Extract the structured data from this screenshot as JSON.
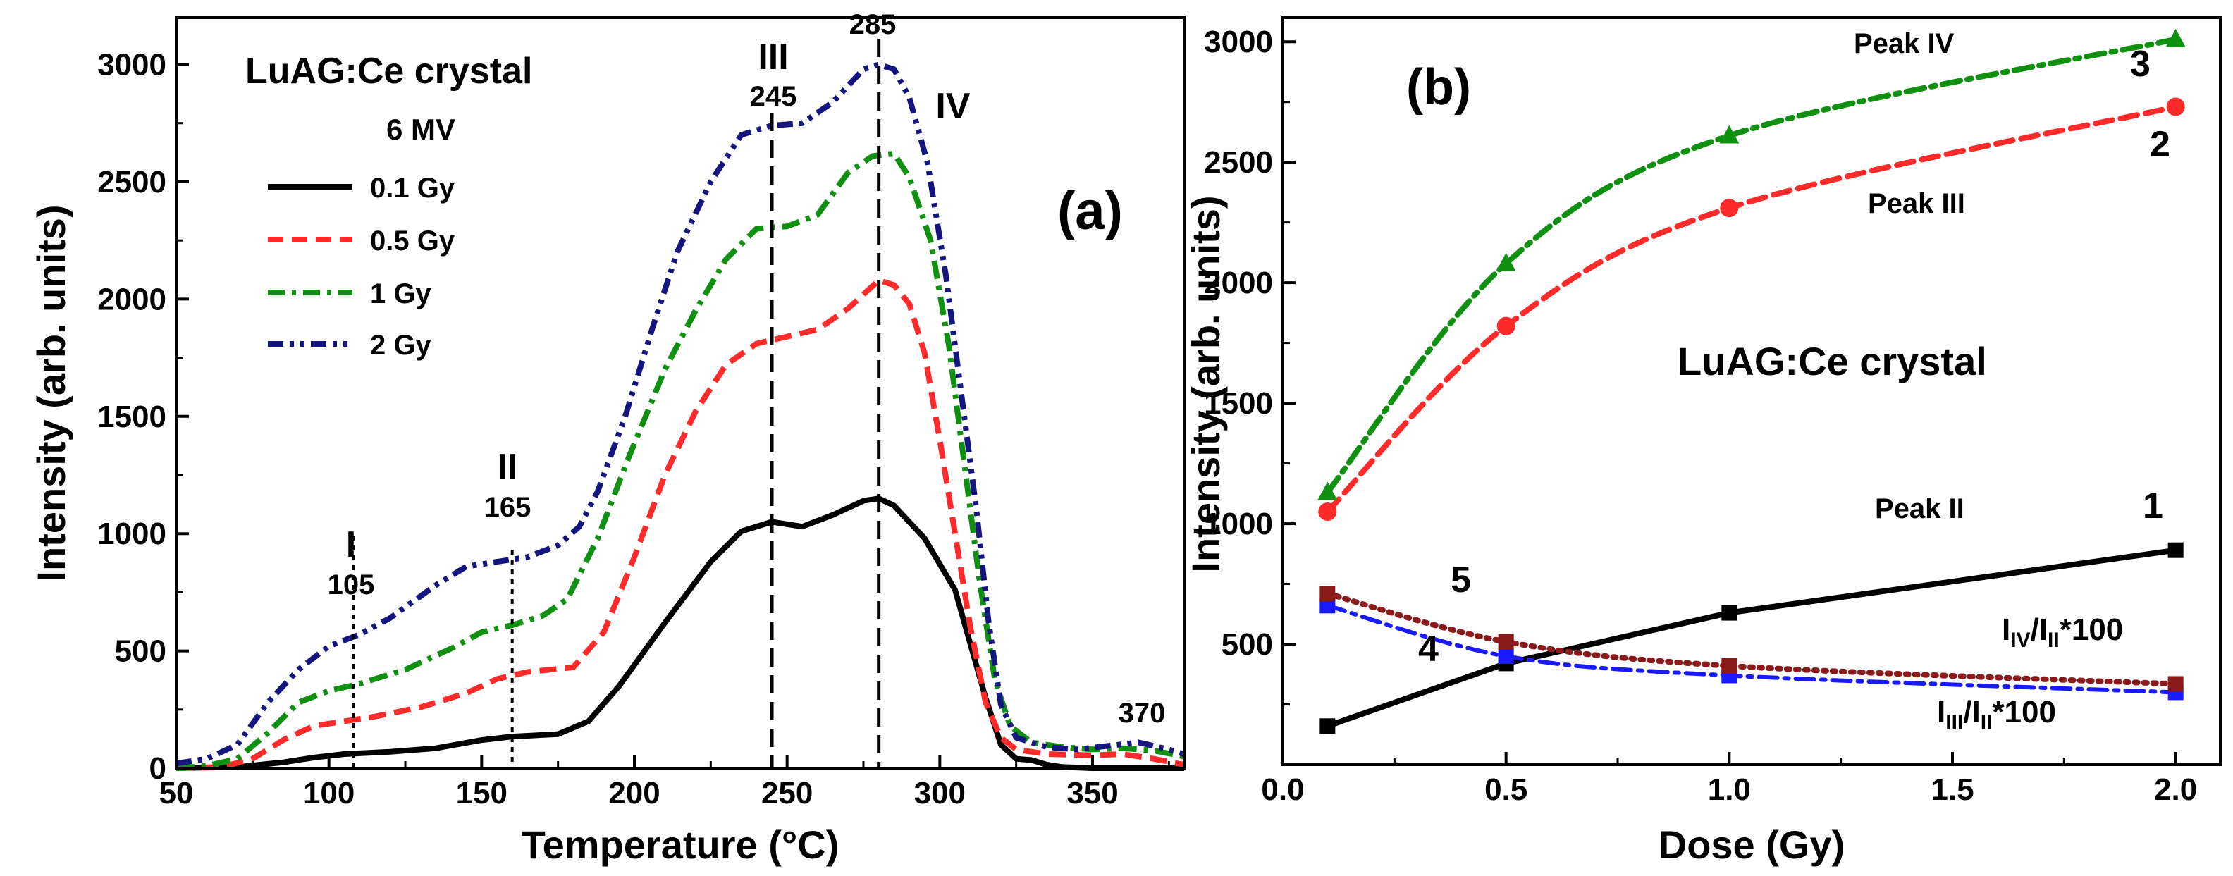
{
  "chart_data": [
    {
      "panel": "a",
      "type": "line",
      "panel_label": "(a)",
      "title": "LuAG:Ce crystal",
      "subtitle": "6 MV",
      "xlabel": "Temperature (°C)",
      "ylabel": "Intensity (arb. units)",
      "xlim": [
        50,
        380
      ],
      "ylim": [
        0,
        3200
      ],
      "xticks": [
        "50",
        "100",
        "150",
        "200",
        "250",
        "300",
        "350"
      ],
      "yticks": [
        "0",
        "500",
        "1000",
        "1500",
        "2000",
        "2500",
        "3000"
      ],
      "legend_position": "top-left",
      "series": [
        {
          "name": "0.1 Gy",
          "color": "#000000",
          "style": "solid",
          "points": [
            [
              50,
              0
            ],
            [
              70,
              5
            ],
            [
              85,
              25
            ],
            [
              95,
              45
            ],
            [
              105,
              60
            ],
            [
              120,
              70
            ],
            [
              135,
              85
            ],
            [
              150,
              120
            ],
            [
              160,
              135
            ],
            [
              175,
              145
            ],
            [
              185,
              200
            ],
            [
              195,
              350
            ],
            [
              210,
              620
            ],
            [
              225,
              880
            ],
            [
              235,
              1010
            ],
            [
              245,
              1050
            ],
            [
              255,
              1030
            ],
            [
              265,
              1080
            ],
            [
              275,
              1140
            ],
            [
              280,
              1150
            ],
            [
              285,
              1120
            ],
            [
              295,
              980
            ],
            [
              305,
              760
            ],
            [
              315,
              300
            ],
            [
              320,
              100
            ],
            [
              325,
              40
            ],
            [
              330,
              35
            ],
            [
              335,
              15
            ],
            [
              340,
              5
            ],
            [
              350,
              0
            ],
            [
              380,
              0
            ]
          ]
        },
        {
          "name": "0.5 Gy",
          "color": "#ff2a2a",
          "style": "dashed",
          "points": [
            [
              50,
              0
            ],
            [
              65,
              5
            ],
            [
              75,
              40
            ],
            [
              85,
              120
            ],
            [
              95,
              180
            ],
            [
              105,
              200
            ],
            [
              115,
              220
            ],
            [
              130,
              260
            ],
            [
              145,
              320
            ],
            [
              155,
              380
            ],
            [
              165,
              410
            ],
            [
              180,
              430
            ],
            [
              190,
              580
            ],
            [
              200,
              900
            ],
            [
              210,
              1250
            ],
            [
              220,
              1520
            ],
            [
              230,
              1720
            ],
            [
              240,
              1810
            ],
            [
              250,
              1840
            ],
            [
              260,
              1870
            ],
            [
              270,
              1960
            ],
            [
              280,
              2080
            ],
            [
              285,
              2060
            ],
            [
              290,
              1980
            ],
            [
              295,
              1770
            ],
            [
              300,
              1400
            ],
            [
              305,
              1000
            ],
            [
              310,
              600
            ],
            [
              315,
              280
            ],
            [
              320,
              130
            ],
            [
              325,
              80
            ],
            [
              335,
              60
            ],
            [
              350,
              55
            ],
            [
              360,
              60
            ],
            [
              370,
              40
            ],
            [
              380,
              15
            ]
          ]
        },
        {
          "name": "1 Gy",
          "color": "#109010",
          "style": "dashdot",
          "points": [
            [
              50,
              0
            ],
            [
              60,
              10
            ],
            [
              70,
              40
            ],
            [
              80,
              150
            ],
            [
              90,
              280
            ],
            [
              100,
              330
            ],
            [
              110,
              360
            ],
            [
              125,
              420
            ],
            [
              140,
              510
            ],
            [
              150,
              580
            ],
            [
              160,
              610
            ],
            [
              170,
              650
            ],
            [
              178,
              720
            ],
            [
              188,
              980
            ],
            [
              198,
              1320
            ],
            [
              210,
              1700
            ],
            [
              220,
              1950
            ],
            [
              230,
              2170
            ],
            [
              240,
              2300
            ],
            [
              250,
              2310
            ],
            [
              260,
              2360
            ],
            [
              270,
              2540
            ],
            [
              278,
              2610
            ],
            [
              285,
              2620
            ],
            [
              290,
              2520
            ],
            [
              297,
              2250
            ],
            [
              303,
              1800
            ],
            [
              308,
              1300
            ],
            [
              313,
              800
            ],
            [
              318,
              380
            ],
            [
              323,
              180
            ],
            [
              330,
              110
            ],
            [
              340,
              90
            ],
            [
              350,
              80
            ],
            [
              360,
              85
            ],
            [
              370,
              75
            ],
            [
              380,
              50
            ]
          ]
        },
        {
          "name": "2 Gy",
          "color": "#151580",
          "style": "dashdotdot",
          "points": [
            [
              50,
              20
            ],
            [
              60,
              40
            ],
            [
              70,
              100
            ],
            [
              80,
              280
            ],
            [
              90,
              420
            ],
            [
              100,
              520
            ],
            [
              110,
              570
            ],
            [
              120,
              640
            ],
            [
              135,
              780
            ],
            [
              145,
              860
            ],
            [
              155,
              880
            ],
            [
              165,
              900
            ],
            [
              175,
              950
            ],
            [
              182,
              1030
            ],
            [
              188,
              1180
            ],
            [
              197,
              1500
            ],
            [
              206,
              1880
            ],
            [
              214,
              2200
            ],
            [
              225,
              2500
            ],
            [
              235,
              2700
            ],
            [
              245,
              2740
            ],
            [
              255,
              2750
            ],
            [
              265,
              2840
            ],
            [
              275,
              2980
            ],
            [
              280,
              3000
            ],
            [
              285,
              2980
            ],
            [
              290,
              2860
            ],
            [
              296,
              2580
            ],
            [
              302,
              2100
            ],
            [
              307,
              1600
            ],
            [
              312,
              1100
            ],
            [
              316,
              620
            ],
            [
              320,
              270
            ],
            [
              325,
              130
            ],
            [
              335,
              90
            ],
            [
              345,
              80
            ],
            [
              355,
              95
            ],
            [
              365,
              110
            ],
            [
              375,
              80
            ],
            [
              380,
              60
            ]
          ]
        }
      ],
      "vlines": [
        {
          "x": 108,
          "label": "I",
          "value_label": "105"
        },
        {
          "x": 160,
          "label": "II",
          "value_label": "165"
        },
        {
          "x": 245,
          "label": "III",
          "value_label": "245"
        },
        {
          "x": 280,
          "label": "IV",
          "value_label": "285"
        }
      ],
      "annotations": [
        {
          "text": "370",
          "x": 366,
          "y": 230
        }
      ]
    },
    {
      "panel": "b",
      "type": "line",
      "panel_label": "(b)",
      "title": "LuAG:Ce crystal",
      "xlabel": "Dose (Gy)",
      "ylabel": "Intensity (arb. units)",
      "xlim": [
        0.0,
        2.1
      ],
      "ylim": [
        0,
        3100
      ],
      "xticks": [
        "0.0",
        "0.5",
        "1.0",
        "1.5",
        "2.0"
      ],
      "yticks": [
        "500",
        "1000",
        "1500",
        "2000",
        "2500",
        "3000"
      ],
      "series": [
        {
          "id": "1",
          "name": "Peak II",
          "color": "#000000",
          "style": "solid",
          "marker": "square",
          "points": [
            [
              0.1,
              160
            ],
            [
              0.5,
              420
            ],
            [
              1.0,
              630
            ],
            [
              2.0,
              890
            ]
          ]
        },
        {
          "id": "2",
          "name": "Peak III",
          "color": "#ff2a2a",
          "style": "dashed",
          "marker": "circle",
          "points": [
            [
              0.1,
              1050
            ],
            [
              0.5,
              1820
            ],
            [
              1.0,
              2310
            ],
            [
              2.0,
              2730
            ]
          ]
        },
        {
          "id": "3",
          "name": "Peak IV",
          "color": "#109010",
          "style": "dashdot",
          "marker": "triangle",
          "points": [
            [
              0.1,
              1130
            ],
            [
              0.5,
              2080
            ],
            [
              1.0,
              2610
            ],
            [
              2.0,
              3010
            ]
          ]
        },
        {
          "id": "4",
          "name": "IIII/III*100",
          "color": "#1a1aff",
          "style": "dashdot",
          "marker": "square",
          "points": [
            [
              0.1,
              660
            ],
            [
              0.5,
              450
            ],
            [
              1.0,
              370
            ],
            [
              2.0,
              300
            ]
          ]
        },
        {
          "id": "5",
          "name": "IIV/III*100",
          "color": "#8b1a1a",
          "style": "dotted",
          "marker": "square",
          "points": [
            [
              0.1,
              710
            ],
            [
              0.5,
              510
            ],
            [
              1.0,
              410
            ],
            [
              2.0,
              335
            ]
          ]
        }
      ],
      "labels": {
        "peak_iv": "Peak IV",
        "peak_iii": "Peak III",
        "peak_ii": "Peak II",
        "num1": "1",
        "num2": "2",
        "num3": "3",
        "num4": "4",
        "num5": "5",
        "ratio_iv_main": "I",
        "ratio_iv_sub": "IV",
        "ratio_iv_mid": "/I",
        "ratio_iv_sub2": "II",
        "ratio_iv_tail": "*100",
        "ratio_iii_main": "I",
        "ratio_iii_sub": "III",
        "ratio_iii_mid": "/I",
        "ratio_iii_sub2": "II",
        "ratio_iii_tail": "*100"
      }
    }
  ]
}
